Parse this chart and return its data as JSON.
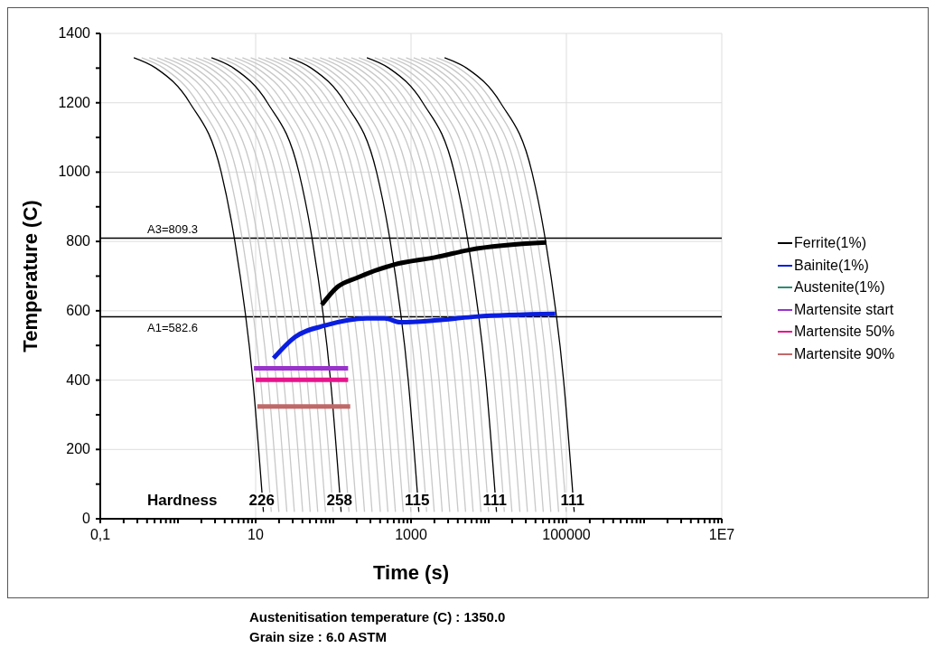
{
  "chart_data": {
    "type": "line",
    "xlabel": "Time (s)",
    "ylabel": "Temperature (C)",
    "log": "x",
    "grid": true,
    "legend": "right",
    "marker": "none",
    "line_style": "solid",
    "xlim": [
      0.1,
      10000000
    ],
    "ylim": [
      0,
      1400
    ],
    "xticks": [
      {
        "value": 0.1,
        "label": "0,1"
      },
      {
        "value": 0.2,
        "label": null
      },
      {
        "value": 0.3,
        "label": null
      },
      {
        "value": 0.4,
        "label": null
      },
      {
        "value": 0.5,
        "label": null
      },
      {
        "value": 0.6,
        "label": null
      },
      {
        "value": 0.7,
        "label": null
      },
      {
        "value": 0.8,
        "label": null
      },
      {
        "value": 0.9,
        "label": null
      },
      {
        "value": 1,
        "label": null
      },
      {
        "value": 2,
        "label": null
      },
      {
        "value": 3,
        "label": null
      },
      {
        "value": 4,
        "label": null
      },
      {
        "value": 5,
        "label": null
      },
      {
        "value": 6,
        "label": null
      },
      {
        "value": 7,
        "label": null
      },
      {
        "value": 8,
        "label": null
      },
      {
        "value": 9,
        "label": null
      },
      10,
      {
        "value": 20,
        "label": null
      },
      {
        "value": 30,
        "label": null
      },
      {
        "value": 40,
        "label": null
      },
      {
        "value": 50,
        "label": null
      },
      {
        "value": 60,
        "label": null
      },
      {
        "value": 70,
        "label": null
      },
      {
        "value": 80,
        "label": null
      },
      {
        "value": 90,
        "label": null
      },
      {
        "value": 100,
        "label": null
      },
      {
        "value": 200,
        "label": null
      },
      {
        "value": 300,
        "label": null
      },
      {
        "value": 400,
        "label": null
      },
      {
        "value": 500,
        "label": null
      },
      {
        "value": 600,
        "label": null
      },
      {
        "value": 700,
        "label": null
      },
      {
        "value": 800,
        "label": null
      },
      {
        "value": 900,
        "label": null
      },
      1000,
      {
        "value": 2000,
        "label": null
      },
      {
        "value": 3000,
        "label": null
      },
      {
        "value": 4000,
        "label": null
      },
      {
        "value": 5000,
        "label": null
      },
      {
        "value": 6000,
        "label": null
      },
      {
        "value": 7000,
        "label": null
      },
      {
        "value": 8000,
        "label": null
      },
      {
        "value": 9000,
        "label": null
      },
      {
        "value": 10000,
        "label": null
      },
      {
        "value": 20000,
        "label": null
      },
      {
        "value": 30000,
        "label": null
      },
      {
        "value": 40000,
        "label": null
      },
      {
        "value": 50000,
        "label": null
      },
      {
        "value": 60000,
        "label": null
      },
      {
        "value": 70000,
        "label": null
      },
      {
        "value": 80000,
        "label": null
      },
      {
        "value": 90000,
        "label": null
      },
      100000,
      {
        "value": 200000,
        "label": null
      },
      {
        "value": 300000,
        "label": null
      },
      {
        "value": 400000,
        "label": null
      },
      {
        "value": 500000,
        "label": null
      },
      {
        "value": 600000,
        "label": null
      },
      {
        "value": 700000,
        "label": null
      },
      {
        "value": 800000,
        "label": null
      },
      {
        "value": 900000,
        "label": null
      },
      {
        "value": 1000000,
        "label": null
      },
      {
        "value": 2000000,
        "label": null
      },
      {
        "value": 3000000,
        "label": null
      },
      {
        "value": 4000000,
        "label": null
      },
      {
        "value": 5000000,
        "label": null
      },
      {
        "value": 6000000,
        "label": null
      },
      {
        "value": 7000000,
        "label": null
      },
      {
        "value": 8000000,
        "label": null
      },
      {
        "value": 9000000,
        "label": null
      },
      {
        "value": 10000000,
        "label": "1E7"
      }
    ],
    "yticks": [
      0,
      {
        "value": 100,
        "label": null
      },
      200,
      {
        "value": 300,
        "label": null
      },
      400,
      {
        "value": 500,
        "label": null
      },
      600,
      {
        "value": 700,
        "label": null
      },
      800,
      {
        "value": 900,
        "label": null
      },
      1000,
      {
        "value": 1100,
        "label": null
      },
      1200,
      {
        "value": 1300,
        "label": null
      },
      1400
    ],
    "ref_lines": [
      {
        "axis": "y",
        "value": 809.3,
        "label": "A3=809.3",
        "color": "#000000"
      },
      {
        "axis": "y",
        "value": 582.6,
        "label": "A1=582.6",
        "color": "#000000"
      }
    ],
    "annotations": [
      "Hardness",
      {
        "text": "226",
        "x": 12,
        "y": 55
      },
      {
        "text": "258",
        "x": 120,
        "y": 55
      },
      {
        "text": "115",
        "x": 1200,
        "y": 55
      },
      {
        "text": "111",
        "x": 12000,
        "y": 55
      },
      {
        "text": "111",
        "x": 120000,
        "y": 55
      },
      "Austenitisation temperature (C) : 1350.0",
      "Grain size : 6.0 ASTM"
    ],
    "series": [
      {
        "color": "#c8c8c8",
        "x": [
          0.34,
          0.655,
          1.79,
          4.54,
          6.8,
          11.6,
          15.9
        ],
        "values": [
          1330,
          1300,
          1200,
          1000,
          800,
          400,
          20
        ]
      },
      {
        "color": "#c8c8c8",
        "x": [
          0.427,
          0.82,
          2.24,
          5.69,
          8.53,
          14.5,
          19.9
        ],
        "values": [
          1330,
          1300,
          1200,
          1000,
          800,
          400,
          20
        ]
      },
      {
        "color": "#c8c8c8",
        "x": [
          0.54,
          1.04,
          2.84,
          7.2,
          10.8,
          18.4,
          25.2
        ],
        "values": [
          1330,
          1300,
          1200,
          1000,
          800,
          400,
          20
        ]
      },
      {
        "color": "#c8c8c8",
        "x": [
          0.675,
          1.3,
          3.55,
          9,
          13.5,
          23,
          31.5
        ],
        "values": [
          1330,
          1300,
          1200,
          1000,
          800,
          400,
          20
        ]
      },
      {
        "color": "#c8c8c8",
        "x": [
          0.864,
          1.66,
          4.54,
          11.5,
          17.3,
          29.4,
          40.3
        ],
        "values": [
          1330,
          1300,
          1200,
          1000,
          800,
          400,
          20
        ]
      },
      {
        "color": "#c8c8c8",
        "x": [
          1.08,
          2.08,
          5.68,
          14.4,
          21.6,
          36.8,
          50.4
        ],
        "values": [
          1330,
          1300,
          1200,
          1000,
          800,
          400,
          20
        ]
      },
      {
        "color": "#c8c8c8",
        "x": [
          1.35,
          2.6,
          7.1,
          18,
          27,
          46,
          63
        ],
        "values": [
          1330,
          1300,
          1200,
          1000,
          800,
          400,
          20
        ]
      },
      {
        "color": "#c8c8c8",
        "x": [
          1.7,
          3.28,
          8.95,
          22.7,
          34,
          58,
          79.4
        ],
        "values": [
          1330,
          1300,
          1200,
          1000,
          800,
          400,
          20
        ]
      },
      {
        "color": "#c8c8c8",
        "x": [
          2.13,
          4.11,
          11.2,
          28.4,
          42.7,
          72.7,
          99.5
        ],
        "values": [
          1330,
          1300,
          1200,
          1000,
          800,
          400,
          20
        ]
      },
      {
        "color": "#c8c8c8",
        "x": [
          3.4,
          6.55,
          17.9,
          45.4,
          68,
          116,
          159
        ],
        "values": [
          1330,
          1300,
          1200,
          1000,
          800,
          400,
          20
        ]
      },
      {
        "color": "#c8c8c8",
        "x": [
          4.27,
          8.2,
          22.4,
          56.9,
          85.3,
          145,
          199
        ],
        "values": [
          1330,
          1300,
          1200,
          1000,
          800,
          400,
          20
        ]
      },
      {
        "color": "#c8c8c8",
        "x": [
          5.4,
          10.4,
          28.4,
          72,
          108,
          184,
          252
        ],
        "values": [
          1330,
          1300,
          1200,
          1000,
          800,
          400,
          20
        ]
      },
      {
        "color": "#c8c8c8",
        "x": [
          6.75,
          13,
          35.5,
          90,
          135,
          230,
          315
        ],
        "values": [
          1330,
          1300,
          1200,
          1000,
          800,
          400,
          20
        ]
      },
      {
        "color": "#c8c8c8",
        "x": [
          8.64,
          16.6,
          45.4,
          115,
          173,
          294,
          403
        ],
        "values": [
          1330,
          1300,
          1200,
          1000,
          800,
          400,
          20
        ]
      },
      {
        "color": "#c8c8c8",
        "x": [
          10.8,
          20.8,
          56.8,
          144,
          216,
          368,
          504
        ],
        "values": [
          1330,
          1300,
          1200,
          1000,
          800,
          400,
          20
        ]
      },
      {
        "color": "#c8c8c8",
        "x": [
          13.5,
          26,
          71,
          180,
          270,
          460,
          630
        ],
        "values": [
          1330,
          1300,
          1200,
          1000,
          800,
          400,
          20
        ]
      },
      {
        "color": "#c8c8c8",
        "x": [
          17,
          32.8,
          89.5,
          227,
          340,
          580,
          794
        ],
        "values": [
          1330,
          1300,
          1200,
          1000,
          800,
          400,
          20
        ]
      },
      {
        "color": "#c8c8c8",
        "x": [
          21.3,
          41.1,
          112,
          284,
          427,
          727,
          995
        ],
        "values": [
          1330,
          1300,
          1200,
          1000,
          800,
          400,
          20
        ]
      },
      {
        "color": "#c8c8c8",
        "x": [
          34,
          65.5,
          179,
          454,
          680,
          1160,
          1590
        ],
        "values": [
          1330,
          1300,
          1200,
          1000,
          800,
          400,
          20
        ]
      },
      {
        "color": "#c8c8c8",
        "x": [
          42.7,
          82,
          224,
          569,
          853,
          1450,
          1990
        ],
        "values": [
          1330,
          1300,
          1200,
          1000,
          800,
          400,
          20
        ]
      },
      {
        "color": "#c8c8c8",
        "x": [
          54,
          104,
          284,
          720,
          1080,
          1840,
          2520
        ],
        "values": [
          1330,
          1300,
          1200,
          1000,
          800,
          400,
          20
        ]
      },
      {
        "color": "#c8c8c8",
        "x": [
          67.5,
          130,
          355,
          900,
          1350,
          2300,
          3150
        ],
        "values": [
          1330,
          1300,
          1200,
          1000,
          800,
          400,
          20
        ]
      },
      {
        "color": "#c8c8c8",
        "x": [
          86.4,
          166,
          454,
          1150,
          1730,
          2940,
          4030
        ],
        "values": [
          1330,
          1300,
          1200,
          1000,
          800,
          400,
          20
        ]
      },
      {
        "color": "#c8c8c8",
        "x": [
          108,
          208,
          568,
          1440,
          2160,
          3680,
          5040
        ],
        "values": [
          1330,
          1300,
          1200,
          1000,
          800,
          400,
          20
        ]
      },
      {
        "color": "#c8c8c8",
        "x": [
          135,
          260,
          710,
          1800,
          2700,
          4600,
          6300
        ],
        "values": [
          1330,
          1300,
          1200,
          1000,
          800,
          400,
          20
        ]
      },
      {
        "color": "#c8c8c8",
        "x": [
          170,
          328,
          895,
          2270,
          3400,
          5800,
          7940
        ],
        "values": [
          1330,
          1300,
          1200,
          1000,
          800,
          400,
          20
        ]
      },
      {
        "color": "#c8c8c8",
        "x": [
          213,
          411,
          1120,
          2840,
          4270,
          7270,
          9950
        ],
        "values": [
          1330,
          1300,
          1200,
          1000,
          800,
          400,
          20
        ]
      },
      {
        "color": "#c8c8c8",
        "x": [
          340,
          655,
          1790,
          4540,
          6800,
          11600,
          15900
        ],
        "values": [
          1330,
          1300,
          1200,
          1000,
          800,
          400,
          20
        ]
      },
      {
        "color": "#c8c8c8",
        "x": [
          427,
          820,
          2240,
          5690,
          8530,
          14500,
          19900
        ],
        "values": [
          1330,
          1300,
          1200,
          1000,
          800,
          400,
          20
        ]
      },
      {
        "color": "#c8c8c8",
        "x": [
          540,
          1040,
          2840,
          7200,
          10800,
          18400,
          25200
        ],
        "values": [
          1330,
          1300,
          1200,
          1000,
          800,
          400,
          20
        ]
      },
      {
        "color": "#c8c8c8",
        "x": [
          675,
          1300,
          3550,
          9000,
          13500,
          23000,
          31500
        ],
        "values": [
          1330,
          1300,
          1200,
          1000,
          800,
          400,
          20
        ]
      },
      {
        "color": "#c8c8c8",
        "x": [
          864,
          1660,
          4540,
          11500,
          17300,
          29400,
          40300
        ],
        "values": [
          1330,
          1300,
          1200,
          1000,
          800,
          400,
          20
        ]
      },
      {
        "color": "#c8c8c8",
        "x": [
          1080,
          2080,
          5680,
          14400,
          21600,
          36800,
          50400
        ],
        "values": [
          1330,
          1300,
          1200,
          1000,
          800,
          400,
          20
        ]
      },
      {
        "color": "#c8c8c8",
        "x": [
          1350,
          2600,
          7100,
          18000,
          27000,
          46000,
          63000
        ],
        "values": [
          1330,
          1300,
          1200,
          1000,
          800,
          400,
          20
        ]
      },
      {
        "color": "#c8c8c8",
        "x": [
          1700,
          3280,
          8950,
          22700,
          34000,
          58000,
          79400
        ],
        "values": [
          1330,
          1300,
          1200,
          1000,
          800,
          400,
          20
        ]
      },
      {
        "color": "#c8c8c8",
        "x": [
          2130,
          4110,
          11200,
          28400,
          42700,
          72700,
          99500
        ],
        "values": [
          1330,
          1300,
          1200,
          1000,
          800,
          400,
          20
        ]
      },
      {
        "color": "#000000",
        "x": [
          0.27,
          0.52,
          1.42,
          3.6,
          5.4,
          9.2,
          12.6
        ],
        "values": [
          1330,
          1300,
          1200,
          1000,
          800,
          400,
          20
        ]
      },
      {
        "color": "#000000",
        "x": [
          2.7,
          5.2,
          14.2,
          36,
          54,
          92,
          126
        ],
        "values": [
          1330,
          1300,
          1200,
          1000,
          800,
          400,
          20
        ]
      },
      {
        "color": "#000000",
        "x": [
          27,
          52,
          142,
          360,
          540,
          920,
          1260
        ],
        "values": [
          1330,
          1300,
          1200,
          1000,
          800,
          400,
          20
        ]
      },
      {
        "color": "#000000",
        "x": [
          270,
          520,
          1420,
          3600,
          5400,
          9200,
          12600
        ],
        "values": [
          1330,
          1300,
          1200,
          1000,
          800,
          400,
          20
        ]
      },
      {
        "color": "#000000",
        "x": [
          2700,
          5200,
          14200,
          36000,
          54000,
          92000,
          126000
        ],
        "values": [
          1330,
          1300,
          1200,
          1000,
          800,
          400,
          20
        ]
      },
      {
        "name": "Ferrite(1%)",
        "color": "#000000",
        "x": [
          71,
          112,
          200,
          600,
          2140,
          5750,
          55000
        ],
        "values": [
          617,
          668,
          695,
          733,
          755,
          776,
          797
        ]
      },
      {
        "name": "Bainite(1%)",
        "color": "#0a1ee0",
        "x": [
          17,
          32,
          80,
          270,
          460,
          720,
          2000,
          6800,
          72000
        ],
        "values": [
          463,
          524,
          558,
          578,
          578,
          567,
          572,
          583,
          591
        ]
      },
      {
        "name": "Austenite(1%)",
        "color": "#2e8b74"
      },
      {
        "name": "Martensite start",
        "color": "#9933cc",
        "x": [
          9.5,
          155
        ],
        "values": [
          434,
          434
        ]
      },
      {
        "name": "Martensite 50%",
        "color": "#e6158c",
        "x": [
          10,
          155
        ],
        "values": [
          401,
          401
        ]
      },
      {
        "name": "Martensite 90%",
        "color": "#c06868",
        "x": [
          10.5,
          165
        ],
        "values": [
          324,
          324
        ]
      }
    ]
  }
}
